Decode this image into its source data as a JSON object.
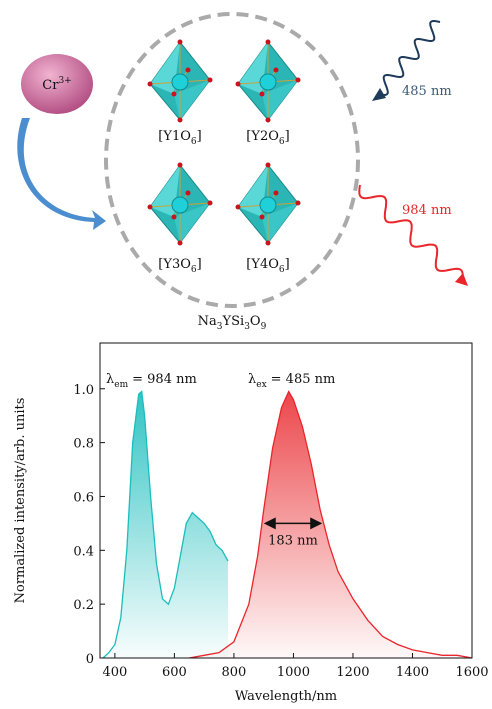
{
  "diagram": {
    "ion": {
      "base": "Cr",
      "sup": "3+"
    },
    "sites": [
      {
        "pre": "[Y1O",
        "sub": "6",
        "post": "]"
      },
      {
        "pre": "[Y2O",
        "sub": "6",
        "post": "]"
      },
      {
        "pre": "[Y3O",
        "sub": "6",
        "post": "]"
      },
      {
        "pre": "[Y4O",
        "sub": "6",
        "post": "]"
      }
    ],
    "host": [
      "Na",
      "3",
      "YSi",
      "3",
      "O",
      "9"
    ],
    "excitation_label": "485 nm",
    "emission_label": "984 nm"
  },
  "chart_data": {
    "type": "area",
    "x_label": "Wavelength/nm",
    "y_label": "Normalized intensity/arb. units",
    "annotations": [
      {
        "symbol": "λ",
        "sub": "em",
        "text": "= 984 nm"
      },
      {
        "symbol": "λ",
        "sub": "ex",
        "text": "= 485 nm"
      }
    ],
    "fwhm": {
      "x": [
        907,
        1090
      ],
      "y": 0.5,
      "label": "183 nm"
    },
    "series": [
      {
        "color": "#1bbdbd",
        "x": [
          360,
          380,
          400,
          420,
          440,
          460,
          480,
          490,
          500,
          520,
          540,
          560,
          580,
          600,
          620,
          640,
          660,
          680,
          700,
          720,
          740,
          760,
          780
        ],
        "values": [
          0.0,
          0.02,
          0.05,
          0.15,
          0.4,
          0.8,
          0.98,
          0.99,
          0.9,
          0.6,
          0.35,
          0.22,
          0.2,
          0.26,
          0.38,
          0.5,
          0.54,
          0.52,
          0.5,
          0.47,
          0.42,
          0.4,
          0.36
        ]
      },
      {
        "color": "#e8262b",
        "x": [
          650,
          700,
          750,
          800,
          850,
          880,
          900,
          930,
          960,
          984,
          1000,
          1030,
          1060,
          1090,
          1120,
          1150,
          1200,
          1250,
          1300,
          1350,
          1400,
          1450,
          1500,
          1550,
          1600
        ],
        "values": [
          0.0,
          0.01,
          0.02,
          0.06,
          0.2,
          0.38,
          0.55,
          0.78,
          0.93,
          0.99,
          0.96,
          0.86,
          0.72,
          0.55,
          0.42,
          0.32,
          0.22,
          0.14,
          0.08,
          0.05,
          0.03,
          0.02,
          0.01,
          0.01,
          0.0
        ]
      }
    ],
    "xlim": [
      350,
      1600
    ],
    "xticks": [
      400,
      600,
      800,
      1000,
      1200,
      1400,
      1600
    ],
    "ylim": [
      0,
      1.17
    ],
    "yticks": [
      0,
      0.2,
      0.4,
      0.6,
      0.8,
      {
        "value": 1,
        "label": "1.0"
      }
    ]
  }
}
